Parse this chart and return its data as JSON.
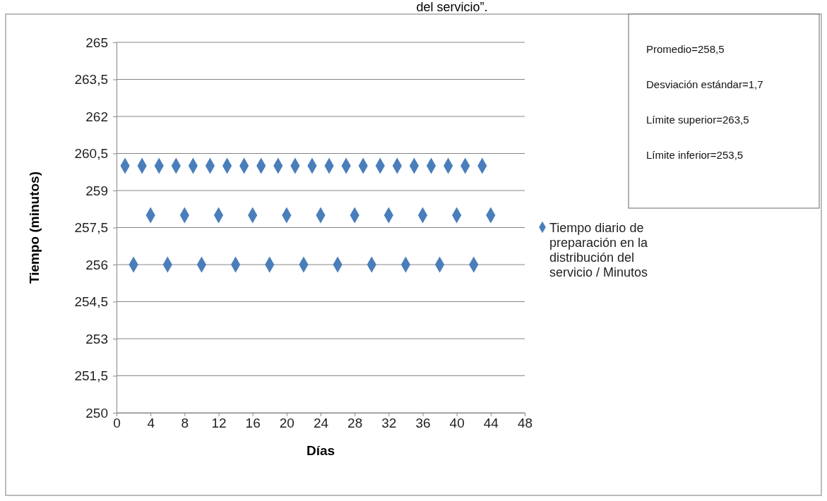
{
  "chart_data": {
    "type": "scatter",
    "title": "del servicio”.",
    "xlabel": "Días",
    "ylabel": "Tiempo (minutos)",
    "x": [
      1,
      2,
      3,
      4,
      5,
      6,
      7,
      8,
      9,
      10,
      11,
      12,
      13,
      14,
      15,
      16,
      17,
      18,
      19,
      20,
      21,
      22,
      23,
      24,
      25,
      26,
      27,
      28,
      29,
      30,
      31,
      32,
      33,
      34,
      35,
      36,
      37,
      38,
      39,
      40,
      41,
      42,
      43,
      44
    ],
    "series": [
      {
        "name": "Tiempo diario de preparación en la distribución del servicio / Minutos",
        "color": "#4a7ebb",
        "values": [
          260,
          256,
          260,
          258,
          260,
          256,
          260,
          258,
          260,
          256,
          260,
          258,
          260,
          256,
          260,
          258,
          260,
          256,
          260,
          258,
          260,
          256,
          260,
          258,
          260,
          256,
          260,
          258,
          260,
          256,
          260,
          258,
          260,
          256,
          260,
          258,
          260,
          256,
          260,
          258,
          260,
          256,
          260,
          258
        ]
      }
    ],
    "xlim": [
      0,
      48
    ],
    "xticks": [
      0,
      4,
      8,
      12,
      16,
      20,
      24,
      28,
      32,
      36,
      40,
      44,
      48
    ],
    "ylim": [
      250,
      265
    ],
    "yticks": [
      250,
      {
        "value": 251.5,
        "label": "251,5"
      },
      253,
      {
        "value": 254.5,
        "label": "254,5"
      },
      256,
      {
        "value": 257.5,
        "label": "257,5"
      },
      259,
      {
        "value": 260.5,
        "label": "260,5"
      },
      262,
      {
        "value": 263.5,
        "label": "263,5"
      },
      265
    ],
    "grid": "y",
    "legend": "right",
    "marker": "diamond",
    "annotations": [
      "Promedio=258,5",
      "Desviación estándar=1,7",
      "Límite superior=263,5",
      "Límite inferior=253,5"
    ]
  }
}
